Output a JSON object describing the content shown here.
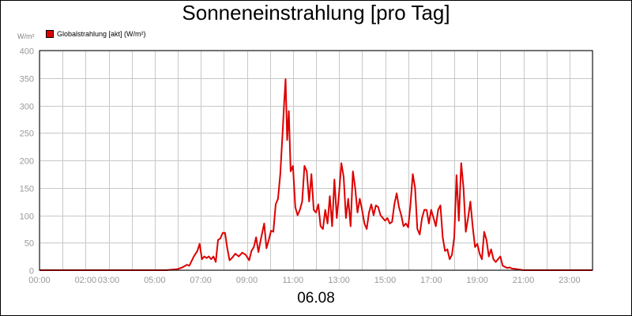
{
  "title": "Sonneneinstrahlung [pro Tag]",
  "unit": "W/m²",
  "date": "06.08",
  "legend": {
    "label": "Globalstrahlung [akt] (W/m²)",
    "color": "#dd0000"
  },
  "chart_data": {
    "type": "line",
    "title": "Sonneneinstrahlung [pro Tag]",
    "xlabel": "06.08",
    "ylabel": "W/m²",
    "xlim": [
      0,
      24
    ],
    "ylim": [
      0,
      400
    ],
    "grid": true,
    "legend_position": "top-left",
    "y_ticks": [
      0,
      50,
      100,
      150,
      200,
      250,
      300,
      350,
      400
    ],
    "x_ticks": [
      {
        "x": 0,
        "label": "00:00"
      },
      {
        "x": 2,
        "label": "02:00"
      },
      {
        "x": 3,
        "label": "03:00"
      },
      {
        "x": 5,
        "label": "05:00"
      },
      {
        "x": 7,
        "label": "07:00"
      },
      {
        "x": 9,
        "label": "09:00"
      },
      {
        "x": 11,
        "label": "11:00"
      },
      {
        "x": 13,
        "label": "13:00"
      },
      {
        "x": 15,
        "label": "15:00"
      },
      {
        "x": 17,
        "label": "17:00"
      },
      {
        "x": 19,
        "label": "19:00"
      },
      {
        "x": 21,
        "label": "21:00"
      },
      {
        "x": 23,
        "label": "23:00"
      }
    ],
    "series": [
      {
        "name": "Globalstrahlung [akt] (W/m²)",
        "color": "#dd0000",
        "x": [
          0,
          5.5,
          6.0,
          6.2,
          6.4,
          6.5,
          6.7,
          6.85,
          6.95,
          7.05,
          7.15,
          7.25,
          7.35,
          7.45,
          7.55,
          7.65,
          7.75,
          7.85,
          7.95,
          8.05,
          8.15,
          8.25,
          8.35,
          8.5,
          8.65,
          8.8,
          8.95,
          9.1,
          9.2,
          9.3,
          9.4,
          9.5,
          9.6,
          9.75,
          9.85,
          9.95,
          10.05,
          10.15,
          10.25,
          10.35,
          10.45,
          10.55,
          10.62,
          10.68,
          10.75,
          10.82,
          10.9,
          11.0,
          11.1,
          11.2,
          11.3,
          11.4,
          11.5,
          11.6,
          11.7,
          11.8,
          11.9,
          12.0,
          12.1,
          12.2,
          12.3,
          12.4,
          12.5,
          12.6,
          12.7,
          12.8,
          12.9,
          13.0,
          13.1,
          13.2,
          13.3,
          13.4,
          13.5,
          13.6,
          13.7,
          13.8,
          13.9,
          14.0,
          14.1,
          14.2,
          14.3,
          14.4,
          14.5,
          14.6,
          14.7,
          14.8,
          14.9,
          15.0,
          15.1,
          15.2,
          15.3,
          15.4,
          15.5,
          15.6,
          15.7,
          15.8,
          15.9,
          16.0,
          16.1,
          16.2,
          16.3,
          16.4,
          16.5,
          16.6,
          16.7,
          16.8,
          16.9,
          17.0,
          17.1,
          17.2,
          17.3,
          17.4,
          17.5,
          17.6,
          17.7,
          17.8,
          17.9,
          18.0,
          18.1,
          18.2,
          18.3,
          18.4,
          18.5,
          18.6,
          18.7,
          18.8,
          18.9,
          19.0,
          19.1,
          19.2,
          19.3,
          19.4,
          19.5,
          19.6,
          19.7,
          19.8,
          19.9,
          20.0,
          20.1,
          20.2,
          20.3,
          20.4,
          20.5,
          20.7,
          21.0,
          24
        ],
        "y": [
          0,
          0,
          2,
          5,
          10,
          8,
          25,
          35,
          48,
          20,
          25,
          22,
          25,
          20,
          25,
          15,
          55,
          58,
          68,
          68,
          40,
          18,
          22,
          30,
          25,
          32,
          28,
          18,
          35,
          42,
          60,
          33,
          55,
          85,
          40,
          55,
          72,
          70,
          120,
          130,
          175,
          250,
          305,
          348,
          237,
          290,
          180,
          190,
          115,
          100,
          110,
          125,
          190,
          180,
          125,
          175,
          110,
          105,
          120,
          80,
          75,
          110,
          85,
          135,
          80,
          165,
          95,
          140,
          195,
          170,
          95,
          130,
          80,
          180,
          150,
          105,
          130,
          110,
          85,
          75,
          105,
          120,
          100,
          118,
          115,
          100,
          95,
          90,
          95,
          85,
          88,
          120,
          140,
          115,
          100,
          80,
          85,
          78,
          120,
          175,
          150,
          75,
          65,
          95,
          110,
          110,
          85,
          110,
          95,
          80,
          110,
          118,
          60,
          35,
          38,
          20,
          28,
          60,
          173,
          90,
          195,
          150,
          70,
          95,
          125,
          80,
          42,
          48,
          30,
          20,
          70,
          55,
          25,
          38,
          20,
          15,
          20,
          25,
          8,
          6,
          4,
          5,
          3,
          2,
          0,
          0
        ]
      }
    ]
  }
}
